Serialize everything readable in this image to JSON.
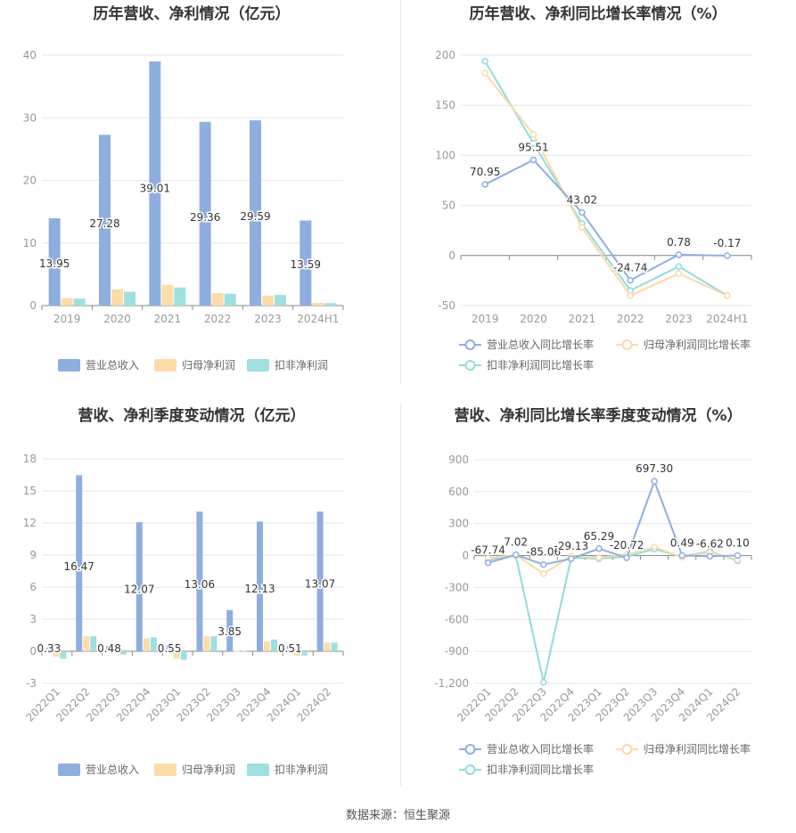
{
  "source": "数据来源：恒生聚源",
  "colors": {
    "revenue": "#8eaedf",
    "net_profit": "#fddcaa",
    "deducted": "#9fdfdf",
    "grid": "#e6e6e6",
    "axis": "#888888",
    "title": "#333333",
    "label": "#333333",
    "tick": "#999999"
  },
  "chart_data": [
    {
      "id": "annual_amount",
      "type": "bar",
      "title": "历年营收、净利情况（亿元）",
      "categories": [
        "2019",
        "2020",
        "2021",
        "2022",
        "2023",
        "2024H1"
      ],
      "ylim": [
        0,
        40
      ],
      "yticks": [
        0,
        10,
        20,
        30,
        40
      ],
      "series": [
        {
          "name": "营业总收入",
          "values": [
            13.95,
            27.28,
            39.01,
            29.36,
            29.59,
            13.59
          ]
        },
        {
          "name": "归母净利润",
          "values": [
            1.2,
            2.6,
            3.3,
            2.0,
            1.6,
            0.45
          ]
        },
        {
          "name": "扣非净利润",
          "values": [
            1.1,
            2.2,
            2.9,
            1.9,
            1.7,
            0.4
          ]
        }
      ],
      "data_labels": [
        "13.95",
        "27.28",
        "39.01",
        "29.36",
        "29.59",
        "13.59"
      ],
      "grid": true,
      "legend": "bottom"
    },
    {
      "id": "annual_growth",
      "type": "line",
      "title": "历年营收、净利同比增长率情况（%）",
      "categories": [
        "2019",
        "2020",
        "2021",
        "2022",
        "2023",
        "2024H1"
      ],
      "ylim": [
        -50,
        200
      ],
      "yticks": [
        -50,
        0,
        50,
        100,
        150,
        200
      ],
      "series": [
        {
          "name": "营业总收入同比增长率",
          "values": [
            70.95,
            95.51,
            43.02,
            -24.74,
            0.78,
            -0.17
          ]
        },
        {
          "name": "归母净利润同比增长率",
          "values": [
            182,
            121,
            28,
            -40,
            -18,
            -40
          ]
        },
        {
          "name": "扣非净利润同比增长率",
          "values": [
            194,
            112,
            32,
            -35,
            -11,
            -40
          ]
        }
      ],
      "data_labels": [
        "70.95",
        "95.51",
        "43.02",
        "-24.74",
        "0.78",
        "-0.17"
      ],
      "grid": true,
      "legend": "bottom"
    },
    {
      "id": "quarterly_amount",
      "type": "bar",
      "title": "营收、净利季度变动情况（亿元）",
      "categories": [
        "2022Q1",
        "2022Q2",
        "2022Q3",
        "2022Q4",
        "2023Q1",
        "2023Q2",
        "2023Q3",
        "2023Q4",
        "2024Q1",
        "2024Q2"
      ],
      "ylim": [
        -3,
        18
      ],
      "yticks": [
        -3,
        0,
        3,
        6,
        9,
        12,
        15,
        18
      ],
      "series": [
        {
          "name": "营业总收入",
          "values": [
            0.33,
            16.47,
            0.48,
            12.07,
            0.55,
            13.06,
            3.85,
            12.13,
            0.51,
            13.07
          ]
        },
        {
          "name": "归母净利润",
          "values": [
            -0.5,
            1.4,
            -0.1,
            1.2,
            -0.7,
            1.4,
            0.05,
            0.9,
            -0.4,
            0.8
          ]
        },
        {
          "name": "扣非净利润",
          "values": [
            -0.7,
            1.4,
            -0.3,
            1.3,
            -0.8,
            1.4,
            0.05,
            1.1,
            -0.4,
            0.8
          ]
        }
      ],
      "data_labels": [
        "0.33",
        "16.47",
        "0.48",
        "12.07",
        "0.55",
        "13.06",
        "3.85",
        "12.13",
        "0.51",
        "13.07"
      ],
      "grid": true,
      "legend": "bottom"
    },
    {
      "id": "quarterly_growth",
      "type": "line",
      "title": "营收、净利同比增长率季度变动情况（%）",
      "categories": [
        "2022Q1",
        "2022Q2",
        "2022Q3",
        "2022Q4",
        "2023Q1",
        "2023Q2",
        "2023Q3",
        "2023Q4",
        "2024Q1",
        "2024Q2"
      ],
      "ylim": [
        -1200,
        900
      ],
      "yticks": [
        -1200,
        -900,
        -600,
        -300,
        0,
        300,
        600,
        900
      ],
      "ytick_labels": [
        "-1,200",
        "-900",
        "-600",
        "-300",
        "0",
        "300",
        "600",
        "900"
      ],
      "series": [
        {
          "name": "营业总收入同比增长率",
          "values": [
            -67.74,
            7.02,
            -85.06,
            -29.13,
            65.29,
            -20.72,
            697.3,
            0.49,
            -6.62,
            0.1
          ]
        },
        {
          "name": "归母净利润同比增长率",
          "values": [
            -25,
            5,
            -170,
            -5,
            -20,
            10,
            80,
            -15,
            30,
            -40
          ]
        },
        {
          "name": "扣非净利润同比增长率",
          "values": [
            -40,
            0,
            -1190,
            -20,
            -30,
            -10,
            60,
            -10,
            40,
            -50
          ]
        }
      ],
      "data_labels": [
        "-67.74",
        "7.02",
        "-85.06",
        "-29.13",
        "65.29",
        "-20.72",
        "697.30",
        "0.49",
        "-6.62",
        "0.10"
      ],
      "grid": true,
      "legend": "bottom"
    }
  ]
}
